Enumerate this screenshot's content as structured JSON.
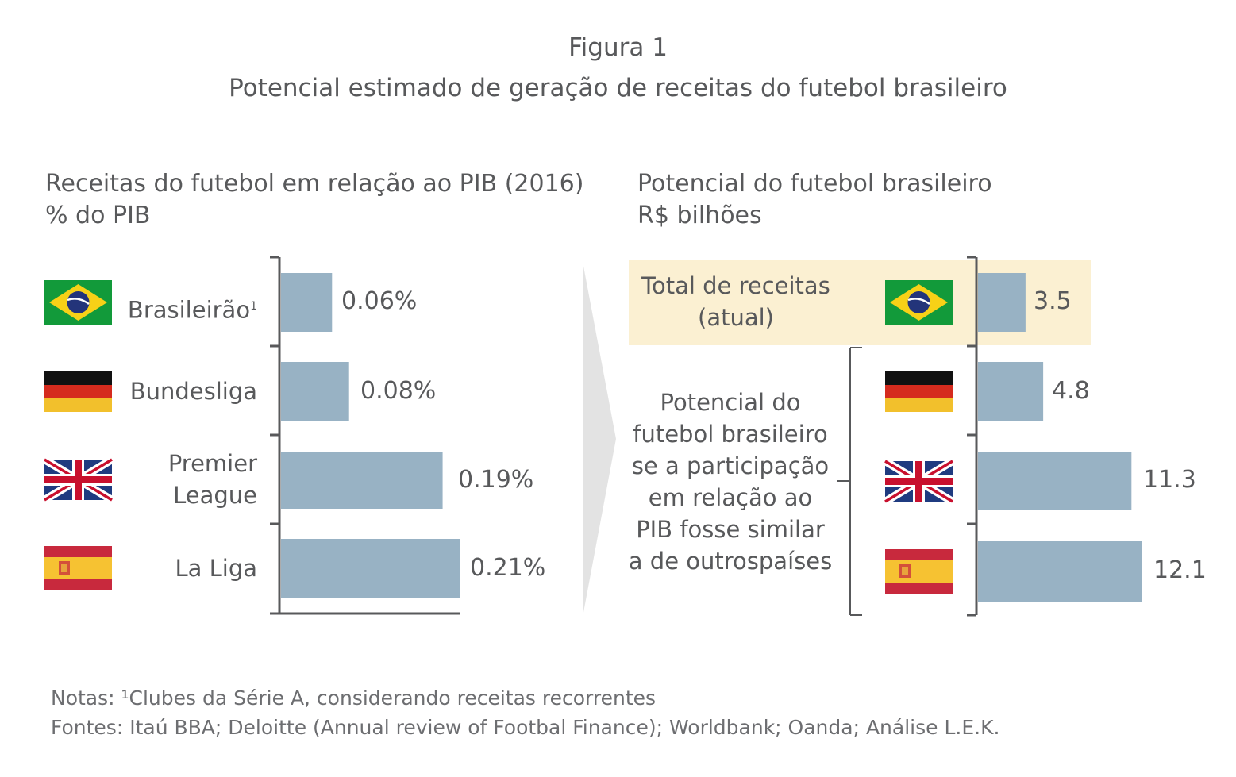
{
  "figure": {
    "label": "Figura 1",
    "title": "Potencial estimado de geração de receitas do futebol brasileiro"
  },
  "colors": {
    "bar": "#98b2c4",
    "highlight": "#fbf0d2",
    "text": "#58595b",
    "axis": "#58595b",
    "arrow": "#e3e3e3"
  },
  "chart_data": [
    {
      "type": "bar",
      "orientation": "horizontal",
      "subtitle_line1": "Receitas do futebol em relação ao PIB (2016)",
      "subtitle_line2": "% do PIB",
      "categories": [
        "Brasileirão",
        "Bundesliga",
        "Premier League",
        "La Liga"
      ],
      "category_labels": [
        {
          "text": "Brasileirão",
          "sup": "1"
        },
        {
          "text": "Bundesliga"
        },
        {
          "line1": "Premier",
          "line2": "League"
        },
        {
          "text": "La Liga"
        }
      ],
      "flags": [
        "brazil-flag",
        "germany-flag",
        "uk-flag",
        "spain-flag"
      ],
      "values": [
        0.06,
        0.08,
        0.19,
        0.21
      ],
      "value_labels": [
        "0.06%",
        "0.08%",
        "0.19%",
        "0.21%"
      ],
      "xlim": [
        0,
        0.21
      ]
    },
    {
      "type": "bar",
      "orientation": "horizontal",
      "subtitle_line1": "Potencial do futebol brasileiro",
      "subtitle_line2": "R$ bilhões",
      "flags": [
        "brazil-flag",
        "germany-flag",
        "uk-flag",
        "spain-flag"
      ],
      "values": [
        3.5,
        4.8,
        11.3,
        12.1
      ],
      "value_labels": [
        "3.5",
        "4.8",
        "11.3",
        "12.1"
      ],
      "xlim": [
        0,
        12.1
      ],
      "current_label_line1": "Total de receitas",
      "current_label_line2": "(atual)",
      "potential_label_lines": [
        "Potencial do",
        "futebol brasileiro",
        "se a participação",
        "em relação ao",
        "PIB fosse similar",
        "a de outrospaíses"
      ]
    }
  ],
  "notes": {
    "line1": "Notas: ¹Clubes da Série A, considerando receitas recorrentes",
    "line2": "Fontes: Itaú BBA; Deloitte (Annual review of Footbal Finance); Worldbank; Oanda; Análise L.E.K."
  }
}
